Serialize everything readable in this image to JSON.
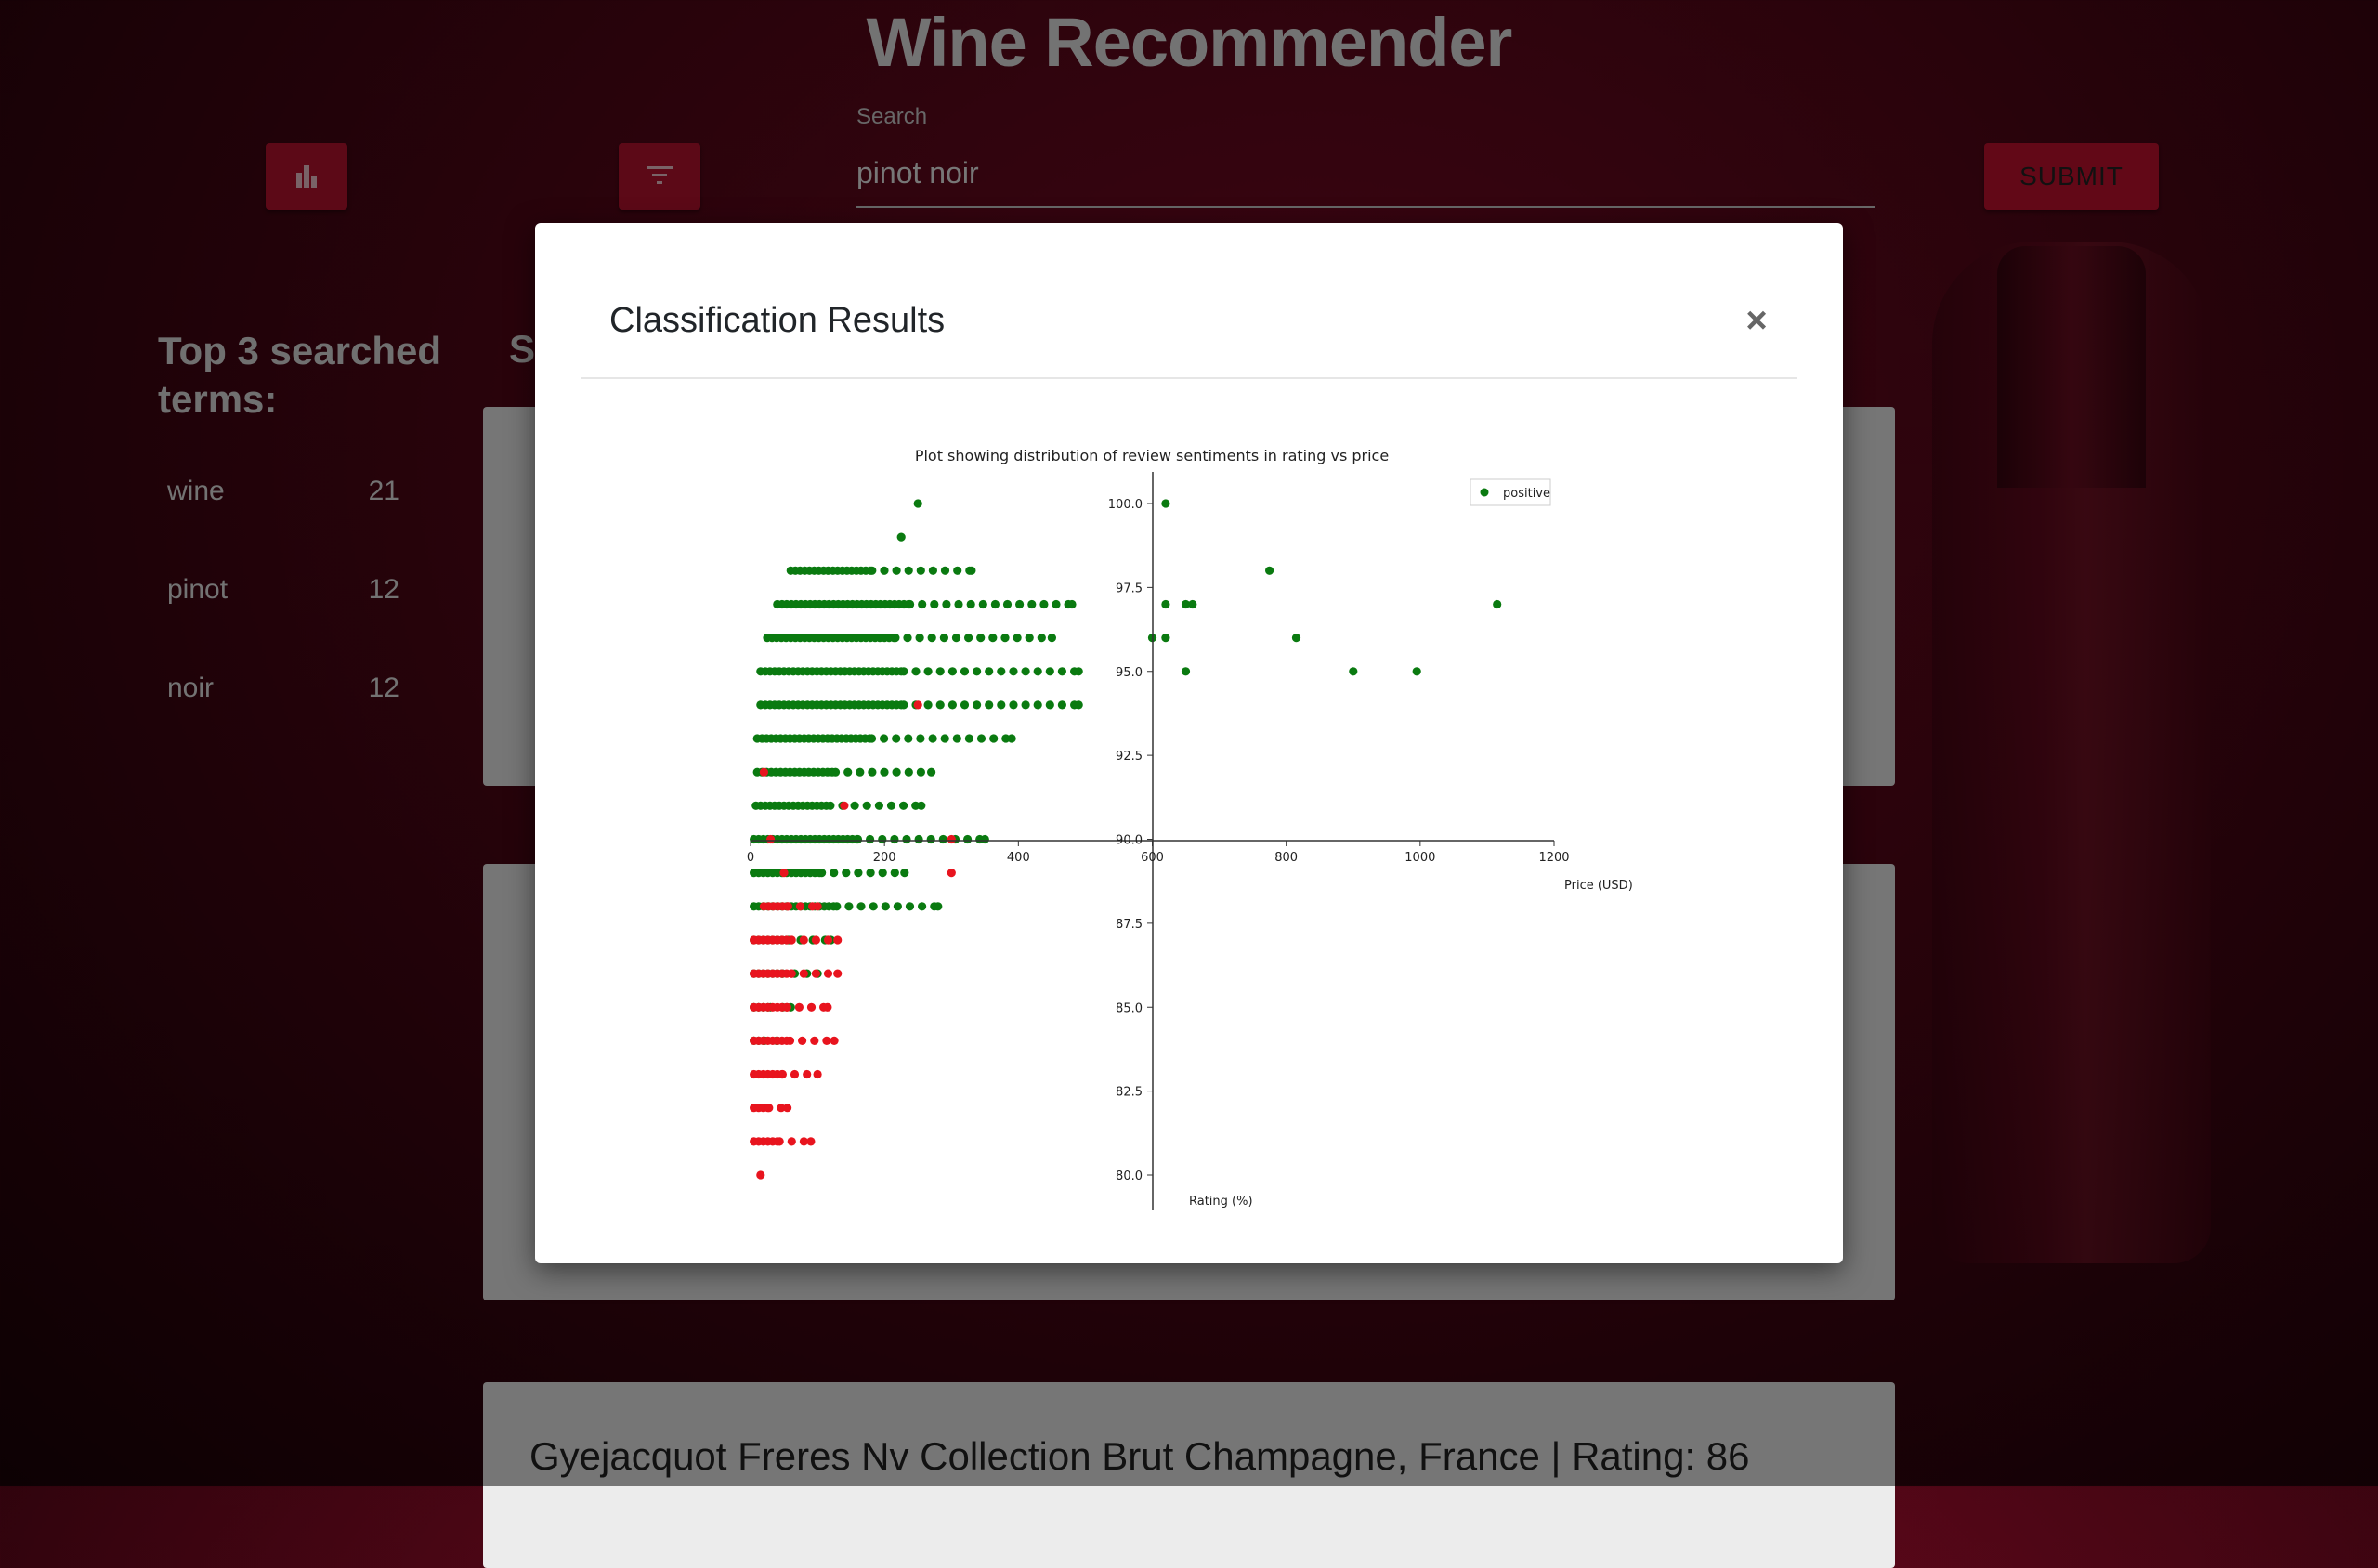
{
  "app": {
    "title": "Wine Recommender"
  },
  "toolbar": {
    "stats_icon": "bar-chart-icon",
    "filter_icon": "filter-icon",
    "search_label": "Search",
    "search_value": "pinot noir",
    "submit_label": "SUBMIT"
  },
  "sidebar": {
    "heading": "Top 3 searched terms:",
    "terms": [
      {
        "term": "wine",
        "count": "21"
      },
      {
        "term": "pinot",
        "count": "12"
      },
      {
        "term": "noir",
        "count": "12"
      }
    ]
  },
  "main": {
    "heading_partial": "S",
    "visible_card_title": "Gyejacquot Freres Nv Collection Brut Champagne, France | Rating: 86"
  },
  "colors": {
    "accent": "#c5102e",
    "positive": "#0a7a10",
    "negative": "#e8141e"
  },
  "modal": {
    "title": "Classification Results",
    "close_icon": "close-icon"
  },
  "chart_data": {
    "type": "scatter",
    "title": "Plot showing distribution of review sentiments in rating vs price",
    "xlabel": "Price (USD)",
    "ylabel": "Rating (%)",
    "xlim": [
      0,
      1200
    ],
    "ylim": [
      80,
      100
    ],
    "x_ticks": [
      "0",
      "200",
      "400",
      "600",
      "800",
      "1000",
      "1200"
    ],
    "y_ticks": [
      "80.0",
      "82.5",
      "85.0",
      "87.5",
      "90.0",
      "92.5",
      "95.0",
      "97.5",
      "100.0"
    ],
    "legend": {
      "placement": "top-right",
      "entries": [
        "positive"
      ]
    },
    "series": [
      {
        "name": "positive",
        "color": "#0a7a10",
        "rows": [
          {
            "y": 100,
            "minx": 250,
            "maxx": 250,
            "extra": [
              620
            ]
          },
          {
            "y": 99,
            "minx": 225,
            "maxx": 225,
            "extra": []
          },
          {
            "y": 98,
            "minx": 60,
            "maxx": 330,
            "extra": [
              775
            ]
          },
          {
            "y": 97,
            "minx": 40,
            "maxx": 480,
            "extra": [
              620,
              650,
              660,
              1115
            ]
          },
          {
            "y": 96,
            "minx": 25,
            "maxx": 450,
            "extra": [
              600,
              620,
              815
            ]
          },
          {
            "y": 95,
            "minx": 15,
            "maxx": 490,
            "extra": [
              650,
              900,
              995
            ]
          },
          {
            "y": 94,
            "minx": 15,
            "maxx": 490,
            "extra": []
          },
          {
            "y": 93,
            "minx": 10,
            "maxx": 390,
            "extra": []
          },
          {
            "y": 92,
            "minx": 10,
            "maxx": 270,
            "extra": []
          },
          {
            "y": 91,
            "minx": 8,
            "maxx": 255,
            "extra": []
          },
          {
            "y": 90,
            "minx": 5,
            "maxx": 350,
            "extra": []
          },
          {
            "y": 89,
            "minx": 5,
            "maxx": 230,
            "extra": []
          },
          {
            "y": 88,
            "minx": 5,
            "maxx": 280,
            "extra": []
          },
          {
            "y": 87,
            "minx": 5,
            "maxx": 120,
            "extra": []
          },
          {
            "y": 86,
            "minx": 5,
            "maxx": 100,
            "extra": []
          },
          {
            "y": 85,
            "minx": 5,
            "maxx": 60,
            "extra": []
          },
          {
            "y": 84,
            "minx": 5,
            "maxx": 40,
            "extra": []
          }
        ]
      },
      {
        "name": "",
        "color": "#e8141e",
        "rows": [
          {
            "y": 94,
            "minx": 250,
            "maxx": 250,
            "extra": []
          },
          {
            "y": 92,
            "minx": 20,
            "maxx": 20,
            "extra": []
          },
          {
            "y": 91,
            "minx": 140,
            "maxx": 140,
            "extra": []
          },
          {
            "y": 90,
            "minx": 30,
            "maxx": 30,
            "extra": [
              300
            ]
          },
          {
            "y": 89,
            "minx": 50,
            "maxx": 50,
            "extra": [
              300
            ]
          },
          {
            "y": 88,
            "minx": 20,
            "maxx": 100,
            "extra": []
          },
          {
            "y": 87,
            "minx": 5,
            "maxx": 130,
            "extra": []
          },
          {
            "y": 86,
            "minx": 5,
            "maxx": 130,
            "extra": []
          },
          {
            "y": 85,
            "minx": 5,
            "maxx": 115,
            "extra": []
          },
          {
            "y": 84,
            "minx": 5,
            "maxx": 125,
            "extra": []
          },
          {
            "y": 83,
            "minx": 5,
            "maxx": 100,
            "extra": []
          },
          {
            "y": 82,
            "minx": 5,
            "maxx": 55,
            "extra": []
          },
          {
            "y": 81,
            "minx": 5,
            "maxx": 90,
            "extra": []
          },
          {
            "y": 80,
            "minx": 15,
            "maxx": 15,
            "extra": []
          }
        ]
      }
    ]
  }
}
